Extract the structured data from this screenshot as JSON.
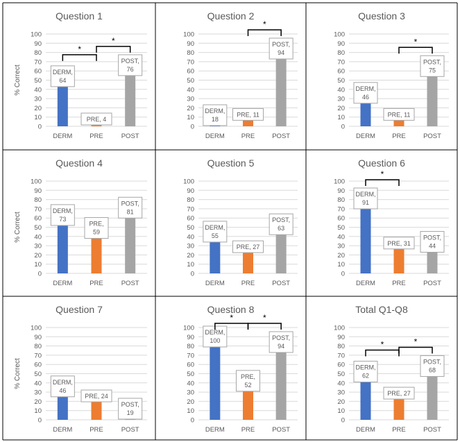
{
  "colors": {
    "derm": "#4472C4",
    "pre": "#ED7D31",
    "post": "#A5A5A5",
    "grid": "#D9D9D9",
    "text": "#595959",
    "border": "#000000"
  },
  "chart_data": [
    {
      "type": "bar",
      "title": "Question 1",
      "ylabel": "% Correct",
      "categories": [
        "DERM",
        "PRE",
        "POST"
      ],
      "values": [
        64,
        4,
        76
      ],
      "data_labels": [
        "DERM, 64",
        "PRE, 4",
        "POST, 76"
      ],
      "ylim": [
        0,
        100
      ],
      "yticks": [
        0,
        10,
        20,
        30,
        40,
        50,
        60,
        70,
        80,
        90,
        100
      ],
      "grid": true,
      "significance": [
        {
          "from": "DERM",
          "to": "PRE",
          "label": "*"
        },
        {
          "from": "PRE",
          "to": "POST",
          "label": "*"
        }
      ]
    },
    {
      "type": "bar",
      "title": "Question 2",
      "ylabel": "",
      "categories": [
        "DERM",
        "PRE",
        "POST"
      ],
      "values": [
        18,
        11,
        94
      ],
      "data_labels": [
        "DERM, 18",
        "PRE, 11",
        "POST, 94"
      ],
      "ylim": [
        0,
        100
      ],
      "yticks": [
        0,
        10,
        20,
        30,
        40,
        50,
        60,
        70,
        80,
        90,
        100
      ],
      "grid": true,
      "significance": [
        {
          "from": "PRE",
          "to": "POST",
          "label": "*"
        }
      ]
    },
    {
      "type": "bar",
      "title": "Question 3",
      "ylabel": "",
      "categories": [
        "DERM",
        "PRE",
        "POST"
      ],
      "values": [
        46,
        11,
        75
      ],
      "data_labels": [
        "DERM, 46",
        "PRE, 11",
        "POST, 75"
      ],
      "ylim": [
        0,
        100
      ],
      "yticks": [
        0,
        10,
        20,
        30,
        40,
        50,
        60,
        70,
        80,
        90,
        100
      ],
      "grid": true,
      "significance": [
        {
          "from": "PRE",
          "to": "POST",
          "label": "*"
        }
      ]
    },
    {
      "type": "bar",
      "title": "Question 4",
      "ylabel": "% Correct",
      "categories": [
        "DERM",
        "PRE",
        "POST"
      ],
      "values": [
        73,
        59,
        81
      ],
      "data_labels": [
        "DERM, 73",
        "PRE, 59",
        "POST, 81"
      ],
      "ylim": [
        0,
        100
      ],
      "yticks": [
        0,
        10,
        20,
        30,
        40,
        50,
        60,
        70,
        80,
        90,
        100
      ],
      "grid": true,
      "significance": []
    },
    {
      "type": "bar",
      "title": "Question 5",
      "ylabel": "",
      "categories": [
        "DERM",
        "PRE",
        "POST"
      ],
      "values": [
        55,
        27,
        63
      ],
      "data_labels": [
        "DERM, 55",
        "PRE, 27",
        "POST, 63"
      ],
      "ylim": [
        0,
        100
      ],
      "yticks": [
        0,
        10,
        20,
        30,
        40,
        50,
        60,
        70,
        80,
        90,
        100
      ],
      "grid": true,
      "significance": []
    },
    {
      "type": "bar",
      "title": "Question 6",
      "ylabel": "",
      "categories": [
        "DERM",
        "PRE",
        "POST"
      ],
      "values": [
        91,
        31,
        44
      ],
      "data_labels": [
        "DERM, 91",
        "PRE, 31",
        "POST, 44"
      ],
      "ylim": [
        0,
        100
      ],
      "yticks": [
        0,
        10,
        20,
        30,
        40,
        50,
        60,
        70,
        80,
        90,
        100
      ],
      "grid": true,
      "significance": [
        {
          "from": "DERM",
          "to": "PRE",
          "label": "*"
        }
      ]
    },
    {
      "type": "bar",
      "title": "Question 7",
      "ylabel": "% Correct",
      "categories": [
        "DERM",
        "PRE",
        "POST"
      ],
      "values": [
        46,
        24,
        19
      ],
      "data_labels": [
        "DERM, 46",
        "PRE, 24",
        "POST, 19"
      ],
      "ylim": [
        0,
        100
      ],
      "yticks": [
        0,
        10,
        20,
        30,
        40,
        50,
        60,
        70,
        80,
        90,
        100
      ],
      "grid": true,
      "significance": []
    },
    {
      "type": "bar",
      "title": "Question 8",
      "ylabel": "",
      "categories": [
        "DERM",
        "PRE",
        "POST"
      ],
      "values": [
        100,
        52,
        94
      ],
      "data_labels": [
        "DERM, 100",
        "PRE, 52",
        "POST, 94"
      ],
      "ylim": [
        0,
        100
      ],
      "yticks": [
        0,
        10,
        20,
        30,
        40,
        50,
        60,
        70,
        80,
        90,
        100
      ],
      "grid": true,
      "significance": [
        {
          "from": "DERM",
          "to": "PRE",
          "label": "*"
        },
        {
          "from": "PRE",
          "to": "POST",
          "label": "*"
        }
      ]
    },
    {
      "type": "bar",
      "title": "Total Q1-Q8",
      "ylabel": "",
      "categories": [
        "DERM",
        "PRE",
        "POST"
      ],
      "values": [
        62,
        27,
        68
      ],
      "data_labels": [
        "DERM, 62",
        "PRE, 27",
        "POST, 68"
      ],
      "ylim": [
        0,
        100
      ],
      "yticks": [
        0,
        10,
        20,
        30,
        40,
        50,
        60,
        70,
        80,
        90,
        100
      ],
      "grid": true,
      "significance": [
        {
          "from": "DERM",
          "to": "PRE",
          "label": "*"
        },
        {
          "from": "PRE",
          "to": "POST",
          "label": "*"
        }
      ]
    }
  ]
}
